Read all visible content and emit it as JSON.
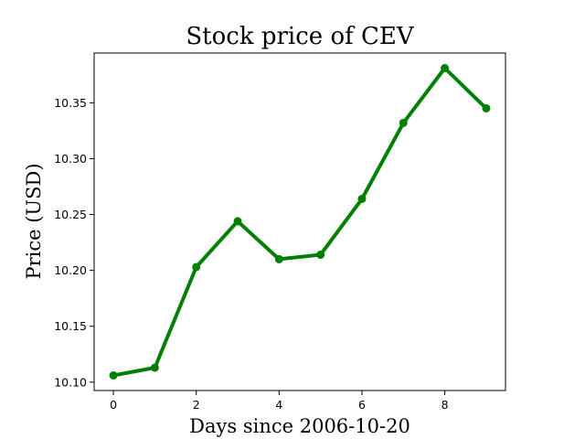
{
  "chart_data": {
    "type": "line",
    "title": "Stock price of CEV",
    "xlabel": "Days since 2006-10-20",
    "ylabel": "Price (USD)",
    "x": [
      0,
      1,
      2,
      3,
      4,
      5,
      6,
      7,
      8,
      9
    ],
    "series": [
      {
        "values": [
          10.106,
          10.113,
          10.203,
          10.244,
          10.21,
          10.214,
          10.264,
          10.332,
          10.381,
          10.345
        ]
      }
    ],
    "xlim": [
      -0.465,
      9.465
    ],
    "ylim": [
      10.0925,
      10.3945
    ],
    "xticks": [
      "0",
      "2",
      "4",
      "6",
      "8"
    ],
    "yticks": [
      "10.10",
      "10.15",
      "10.20",
      "10.25",
      "10.30",
      "10.35"
    ],
    "grid": false,
    "line_color": "#008000"
  }
}
